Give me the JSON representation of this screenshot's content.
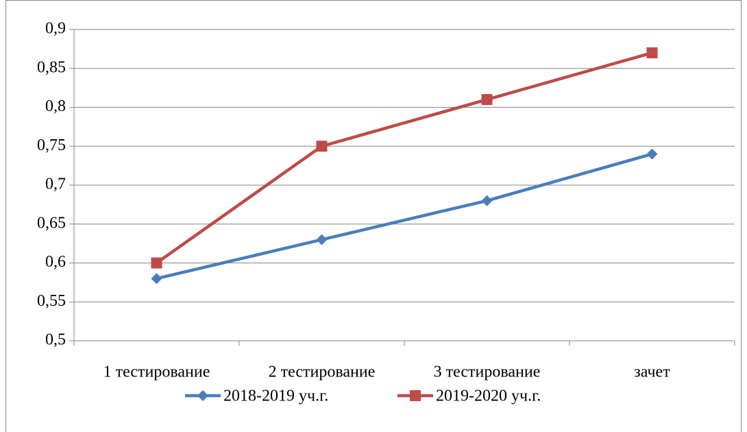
{
  "chart_data": {
    "type": "line",
    "categories": [
      "1 тестирование",
      "2 тестирование",
      "3 тестирование",
      "зачет"
    ],
    "series": [
      {
        "name": "2018-2019 уч.г.",
        "color": "#4a7ebb",
        "marker": "diamond",
        "values": [
          0.58,
          0.63,
          0.68,
          0.74
        ]
      },
      {
        "name": "2019-2020 уч.г.",
        "color": "#be4b48",
        "marker": "square",
        "values": [
          0.6,
          0.75,
          0.81,
          0.87
        ]
      }
    ],
    "ylim": [
      0.5,
      0.9
    ],
    "yticks": [
      {
        "value": 0.5,
        "label": "0,5"
      },
      {
        "value": 0.55,
        "label": "0,55"
      },
      {
        "value": 0.6,
        "label": "0,6"
      },
      {
        "value": 0.65,
        "label": "0,65"
      },
      {
        "value": 0.7,
        "label": "0,7"
      },
      {
        "value": 0.75,
        "label": "0,75"
      },
      {
        "value": 0.8,
        "label": "0,8"
      },
      {
        "value": 0.85,
        "label": "0,85"
      },
      {
        "value": 0.9,
        "label": "0,9"
      }
    ],
    "grid": true,
    "legend": "bottom"
  }
}
